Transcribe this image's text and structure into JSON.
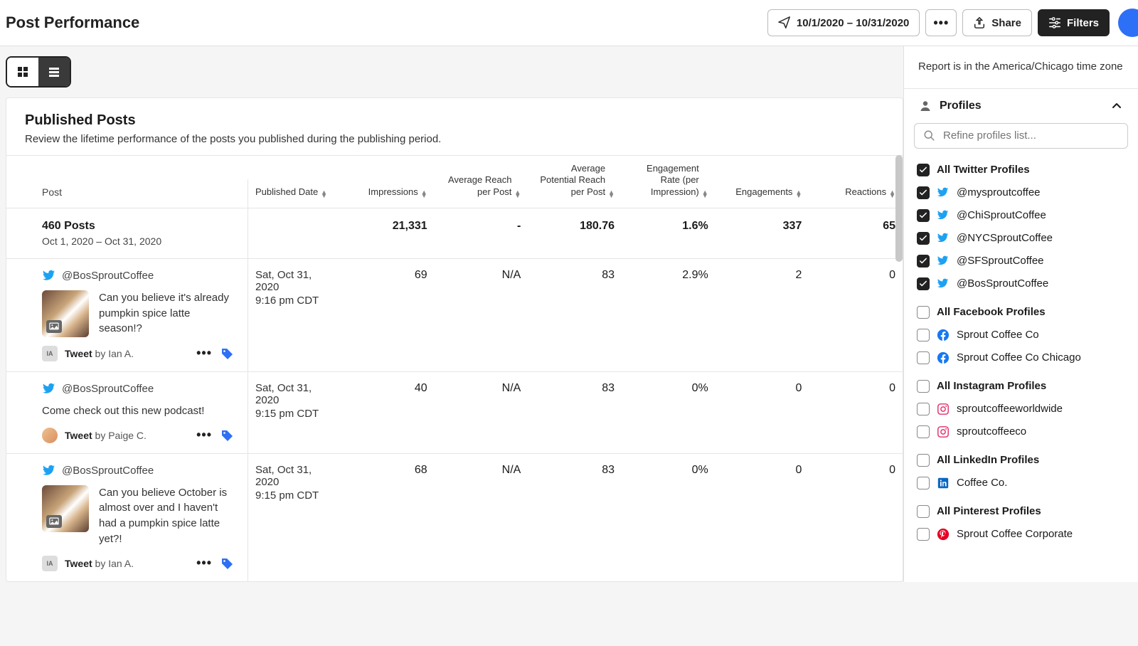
{
  "header": {
    "title": "Post Performance",
    "date_range": "10/1/2020 – 10/31/2020",
    "share_label": "Share",
    "filters_label": "Filters"
  },
  "colors": {
    "twitter": "#1da1f2",
    "facebook": "#1877f2",
    "instagram": "#e1306c",
    "linkedin": "#0a66c2",
    "pinterest": "#e60023",
    "tag": "#2d6ff7",
    "dark": "#222222"
  },
  "card": {
    "title": "Published Posts",
    "subtitle": "Review the lifetime performance of the posts you published during the publishing period."
  },
  "columns": {
    "post": "Post",
    "published_date": "Published Date",
    "impressions": "Impressions",
    "avg_reach": "Average Reach per Post",
    "avg_potential_reach": "Average Potential Reach per Post",
    "engagement_rate": "Engagement Rate (per Impression)",
    "engagements": "Engagements",
    "reactions": "Reactions"
  },
  "summary": {
    "posts_count": "460 Posts",
    "period": "Oct 1, 2020 – Oct 31, 2020",
    "impressions": "21,331",
    "avg_reach": "-",
    "avg_potential_reach": "180.76",
    "engagement_rate": "1.6%",
    "engagements": "337",
    "reactions": "65"
  },
  "posts": [
    {
      "handle": "@BosSproutCoffee",
      "network": "twitter",
      "has_thumb": true,
      "text": "Can you believe it's already pumpkin spice latte season!?",
      "tweet_label": "Tweet",
      "by_prefix": "by",
      "author": "Ian A.",
      "author_avatar": "initials",
      "initials": "IA",
      "date": "Sat, Oct 31, 2020",
      "time": "9:16 pm CDT",
      "impressions": "69",
      "avg_reach": "N/A",
      "avg_potential_reach": "83",
      "engagement_rate": "2.9%",
      "engagements": "2",
      "reactions": "0"
    },
    {
      "handle": "@BosSproutCoffee",
      "network": "twitter",
      "has_thumb": false,
      "text": "Come check out this new podcast!",
      "tweet_label": "Tweet",
      "by_prefix": "by",
      "author": "Paige C.",
      "author_avatar": "photo",
      "initials": "",
      "date": "Sat, Oct 31, 2020",
      "time": "9:15 pm CDT",
      "impressions": "40",
      "avg_reach": "N/A",
      "avg_potential_reach": "83",
      "engagement_rate": "0%",
      "engagements": "0",
      "reactions": "0"
    },
    {
      "handle": "@BosSproutCoffee",
      "network": "twitter",
      "has_thumb": true,
      "text": "Can you believe October is almost over and I haven't had a pumpkin spice latte yet?!",
      "tweet_label": "Tweet",
      "by_prefix": "by",
      "author": "Ian A.",
      "author_avatar": "initials",
      "initials": "IA",
      "date": "Sat, Oct 31, 2020",
      "time": "9:15 pm CDT",
      "impressions": "68",
      "avg_reach": "N/A",
      "avg_potential_reach": "83",
      "engagement_rate": "0%",
      "engagements": "0",
      "reactions": "0"
    }
  ],
  "sidebar": {
    "tz_note": "Report is in the America/Chicago time zone",
    "profiles_label": "Profiles",
    "search_placeholder": "Refine profiles list...",
    "groups": [
      {
        "label": "All Twitter Profiles",
        "checked": true,
        "items": [
          {
            "label": "@mysproutcoffee",
            "net": "twitter",
            "checked": true
          },
          {
            "label": "@ChiSproutCoffee",
            "net": "twitter",
            "checked": true
          },
          {
            "label": "@NYCSproutCoffee",
            "net": "twitter",
            "checked": true
          },
          {
            "label": "@SFSproutCoffee",
            "net": "twitter",
            "checked": true
          },
          {
            "label": "@BosSproutCoffee",
            "net": "twitter",
            "checked": true
          }
        ]
      },
      {
        "label": "All Facebook Profiles",
        "checked": false,
        "items": [
          {
            "label": "Sprout Coffee Co",
            "net": "facebook",
            "checked": false
          },
          {
            "label": "Sprout Coffee Co Chicago",
            "net": "facebook",
            "checked": false
          }
        ]
      },
      {
        "label": "All Instagram Profiles",
        "checked": false,
        "items": [
          {
            "label": "sproutcoffeeworldwide",
            "net": "instagram",
            "checked": false
          },
          {
            "label": "sproutcoffeeco",
            "net": "instagram",
            "checked": false
          }
        ]
      },
      {
        "label": "All LinkedIn Profiles",
        "checked": false,
        "items": [
          {
            "label": "Coffee Co.",
            "net": "linkedin",
            "checked": false
          }
        ]
      },
      {
        "label": "All Pinterest Profiles",
        "checked": false,
        "items": [
          {
            "label": "Sprout Coffee Corporate",
            "net": "pinterest",
            "checked": false
          }
        ]
      }
    ]
  }
}
